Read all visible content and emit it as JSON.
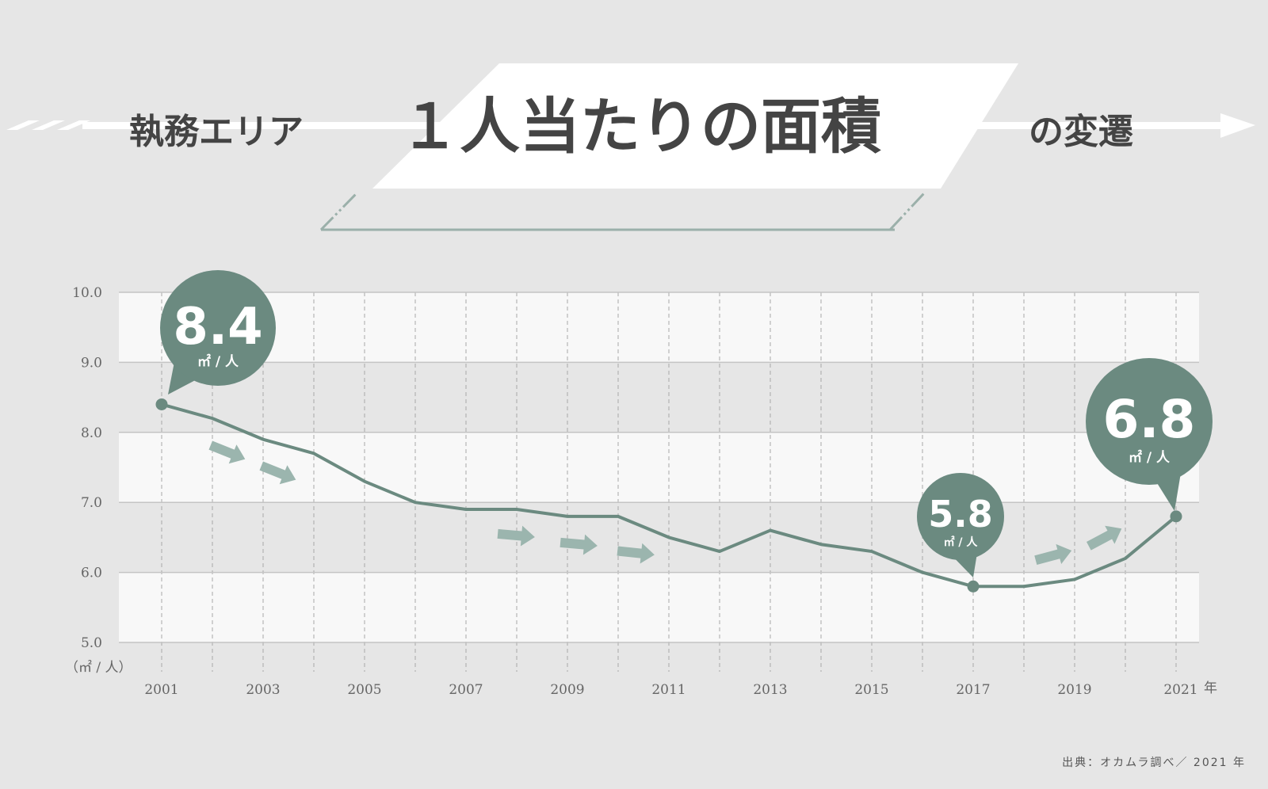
{
  "title": {
    "prefix": "執務エリア",
    "main": "１人当たりの面積",
    "suffix": "の変遷"
  },
  "source": "出典：オカムラ調べ／ 2021 年",
  "colors": {
    "line": "#6b8a80",
    "bubble": "#6b8a80",
    "arrow": "#9bb5ae",
    "stripe_light": "#f8f8f8",
    "stripe_dark": "#e6e6e6",
    "text": "#444444"
  },
  "chart_data": {
    "type": "line",
    "xlabel": "",
    "ylabel": "",
    "y_unit_label": "（㎡ / 人）",
    "x_unit_label": "年",
    "ylim": [
      5.0,
      10.0
    ],
    "xlim": [
      2001,
      2021
    ],
    "y_ticks": [
      "10.0",
      "9.0",
      "8.0",
      "7.0",
      "6.0",
      "5.0"
    ],
    "x_ticks": [
      "2001",
      "2003",
      "2005",
      "2007",
      "2009",
      "2011",
      "2013",
      "2015",
      "2017",
      "2019",
      "2021"
    ],
    "grid": true,
    "series": [
      {
        "x": [
          2001,
          2002,
          2003,
          2004,
          2005,
          2006,
          2007,
          2008,
          2009,
          2010,
          2011,
          2012,
          2013,
          2014,
          2015,
          2016,
          2017,
          2018,
          2019,
          2020,
          2021
        ],
        "y": [
          8.4,
          8.2,
          7.9,
          7.7,
          7.3,
          7.0,
          6.9,
          6.9,
          6.8,
          6.8,
          6.5,
          6.3,
          6.6,
          6.4,
          6.3,
          6.0,
          5.8,
          5.8,
          5.9,
          6.2,
          6.8
        ]
      }
    ],
    "annotations": [
      {
        "x": 2001,
        "value": "8.4",
        "unit": "㎡ / 人"
      },
      {
        "x": 2017,
        "value": "5.8",
        "unit": "㎡ / 人"
      },
      {
        "x": 2021,
        "value": "6.8",
        "unit": "㎡ / 人"
      }
    ]
  }
}
